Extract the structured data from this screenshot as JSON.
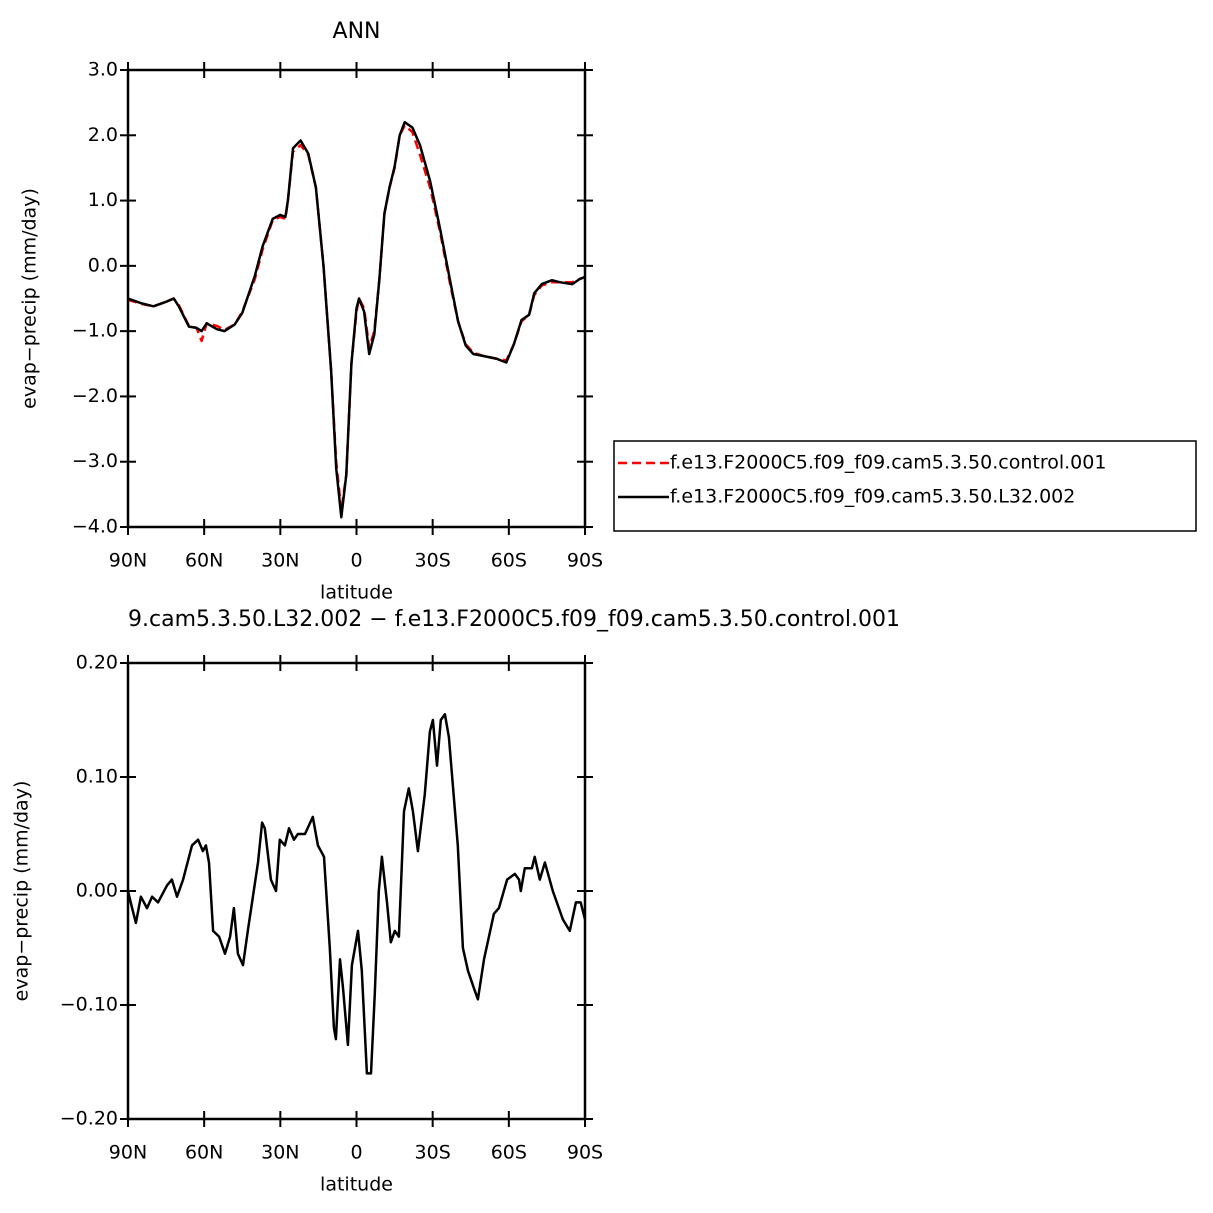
{
  "chart_data": [
    {
      "type": "line",
      "title": "ANN",
      "xlabel": "latitude",
      "ylabel": "evap−precip (mm/day)",
      "x": [
        90,
        85,
        80,
        75,
        72,
        70,
        66,
        63,
        61,
        59,
        55,
        52,
        48,
        45,
        40,
        37,
        33,
        30,
        28,
        27,
        25,
        22,
        19,
        16,
        13,
        10,
        8,
        6,
        4,
        2,
        0,
        -1,
        -3,
        -5,
        -7,
        -9,
        -11,
        -13,
        -15,
        -17,
        -19,
        -22,
        -25,
        -29,
        -33,
        -37,
        -40,
        -43,
        -46,
        -50,
        -55,
        -59,
        -62,
        -65,
        -68,
        -70,
        -73,
        -77,
        -80,
        -85,
        -88,
        -90
      ],
      "series": [
        {
          "name": "f.e13.F2000C5.f09_f09.cam5.3.50.control.001",
          "color": "#ff0000",
          "dashed": true,
          "values": [
            -0.52,
            -0.58,
            -0.62,
            -0.55,
            -0.5,
            -0.6,
            -0.92,
            -0.95,
            -1.15,
            -0.88,
            -0.92,
            -0.98,
            -0.9,
            -0.7,
            -0.2,
            0.25,
            0.7,
            0.75,
            0.72,
            1.0,
            1.75,
            1.85,
            1.7,
            1.2,
            0,
            -1.6,
            -3.0,
            -3.75,
            -3.2,
            -1.5,
            -0.7,
            -0.5,
            -0.65,
            -1.25,
            -1.0,
            -0.2,
            0.8,
            1.2,
            1.5,
            2.0,
            2.15,
            2.05,
            1.7,
            1.2,
            0.5,
            -0.3,
            -0.85,
            -1.2,
            -1.33,
            -1.38,
            -1.42,
            -1.45,
            -1.2,
            -0.85,
            -0.75,
            -0.45,
            -0.3,
            -0.25,
            -0.25,
            -0.25,
            -0.2,
            -0.17
          ]
        },
        {
          "name": "f.e13.F2000C5.f09_f09.cam5.3.50.L32.002",
          "color": "#000000",
          "dashed": false,
          "values": [
            -0.5,
            -0.57,
            -0.62,
            -0.55,
            -0.5,
            -0.62,
            -0.93,
            -0.95,
            -1.0,
            -0.88,
            -0.97,
            -1.0,
            -0.9,
            -0.72,
            -0.15,
            0.3,
            0.72,
            0.78,
            0.75,
            1.0,
            1.8,
            1.92,
            1.72,
            1.2,
            0,
            -1.6,
            -3.1,
            -3.85,
            -3.2,
            -1.5,
            -0.65,
            -0.5,
            -0.7,
            -1.35,
            -1.05,
            -0.2,
            0.8,
            1.2,
            1.52,
            2.0,
            2.2,
            2.12,
            1.85,
            1.3,
            0.55,
            -0.25,
            -0.85,
            -1.22,
            -1.35,
            -1.38,
            -1.42,
            -1.48,
            -1.2,
            -0.83,
            -0.75,
            -0.42,
            -0.28,
            -0.22,
            -0.25,
            -0.28,
            -0.2,
            -0.17
          ]
        }
      ],
      "xlim": [
        90,
        -90
      ],
      "xticks": [
        {
          "value": 90,
          "label": "90N"
        },
        {
          "value": 60,
          "label": "60N"
        },
        {
          "value": 30,
          "label": "30N"
        },
        0,
        {
          "value": -30,
          "label": "30S"
        },
        {
          "value": -60,
          "label": "60S"
        },
        {
          "value": -90,
          "label": "90S"
        }
      ],
      "ylim": [
        -4,
        3
      ],
      "yticks": [
        {
          "value": -4,
          "label": "−4.0"
        },
        {
          "value": -3,
          "label": "−3.0"
        },
        {
          "value": -2,
          "label": "−2.0"
        },
        {
          "value": -1,
          "label": "−1.0"
        },
        {
          "value": 0,
          "label": "0.0"
        },
        {
          "value": 1,
          "label": "1.0"
        },
        {
          "value": 2,
          "label": "2.0"
        },
        {
          "value": 3,
          "label": "3.0"
        }
      ],
      "legend": "outside-right"
    },
    {
      "type": "line",
      "title": "9.cam5.3.50.L32.002 − f.e13.F2000C5.f09_f09.cam5.3.50.control.001",
      "xlabel": "latitude",
      "ylabel": "evap−precip (mm/day)",
      "x": [
        90,
        88.4,
        86.9,
        84.9,
        82.5,
        80.5,
        78.2,
        74.6,
        72.7,
        70.7,
        68.3,
        64.8,
        62.4,
        60.5,
        59.3,
        58.1,
        56.5,
        54.1,
        51.8,
        49.8,
        48.3,
        46.7,
        44.7,
        42.8,
        38.8,
        37.2,
        36.1,
        33.7,
        31.7,
        30.2,
        28.2,
        26.6,
        24.6,
        23.1,
        20.3,
        17.2,
        15.2,
        12.8,
        10.5,
        8.9,
        8.1,
        6.5,
        5.3,
        3.4,
        1.8,
        -0.6,
        -2.1,
        -4.1,
        -5.7,
        -7.2,
        -8.8,
        -10,
        -12,
        -13.5,
        -15.1,
        -16.7,
        -18.7,
        -20.6,
        -22.2,
        -24.2,
        -26.9,
        -28.9,
        -30.1,
        -31.7,
        -33.2,
        -34.8,
        -36.4,
        -39.9,
        -41.9,
        -43.9,
        -46.2,
        -47.8,
        -50.2,
        -54.1,
        -56.1,
        -59.3,
        -62.4,
        -64,
        -64.7,
        -66.3,
        -69.1,
        -70.2,
        -72.2,
        -74.2,
        -77.3,
        -81.3,
        -84,
        -86.4,
        -88.3,
        -90
      ],
      "series": [
        {
          "color": "#000000",
          "dashed": false,
          "values": [
            0,
            -0.015,
            -0.028,
            -0.005,
            -0.015,
            -0.005,
            -0.01,
            0.005,
            0.01,
            -0.005,
            0.01,
            0.04,
            0.045,
            0.035,
            0.04,
            0.025,
            -0.035,
            -0.04,
            -0.055,
            -0.04,
            -0.015,
            -0.055,
            -0.065,
            -0.035,
            0.025,
            0.06,
            0.055,
            0.01,
            0,
            0.045,
            0.04,
            0.055,
            0.045,
            0.05,
            0.05,
            0.065,
            0.04,
            0.03,
            -0.05,
            -0.12,
            -0.13,
            -0.06,
            -0.085,
            -0.135,
            -0.065,
            -0.035,
            -0.07,
            -0.16,
            -0.16,
            -0.09,
            0,
            0.03,
            -0.01,
            -0.045,
            -0.035,
            -0.04,
            0.07,
            0.09,
            0.07,
            0.035,
            0.085,
            0.14,
            0.15,
            0.11,
            0.15,
            0.155,
            0.135,
            0.04,
            -0.05,
            -0.07,
            -0.085,
            -0.095,
            -0.06,
            -0.02,
            -0.015,
            0.01,
            0.015,
            0.01,
            0,
            0.02,
            0.02,
            0.03,
            0.01,
            0.025,
            0,
            -0.025,
            -0.035,
            -0.01,
            -0.01,
            -0.025
          ]
        }
      ],
      "xlim": [
        90,
        -90
      ],
      "xticks": [
        {
          "value": 90,
          "label": "90N"
        },
        {
          "value": 60,
          "label": "60N"
        },
        {
          "value": 30,
          "label": "30N"
        },
        0,
        {
          "value": -30,
          "label": "30S"
        },
        {
          "value": -60,
          "label": "60S"
        },
        {
          "value": -90,
          "label": "90S"
        }
      ],
      "ylim": [
        -0.2,
        0.2
      ],
      "yticks": [
        {
          "value": -0.2,
          "label": "−0.20"
        },
        {
          "value": -0.1,
          "label": "−0.10"
        },
        {
          "value": 0,
          "label": "0.00"
        },
        {
          "value": 0.1,
          "label": "0.10"
        },
        {
          "value": 0.2,
          "label": "0.20"
        }
      ]
    }
  ]
}
